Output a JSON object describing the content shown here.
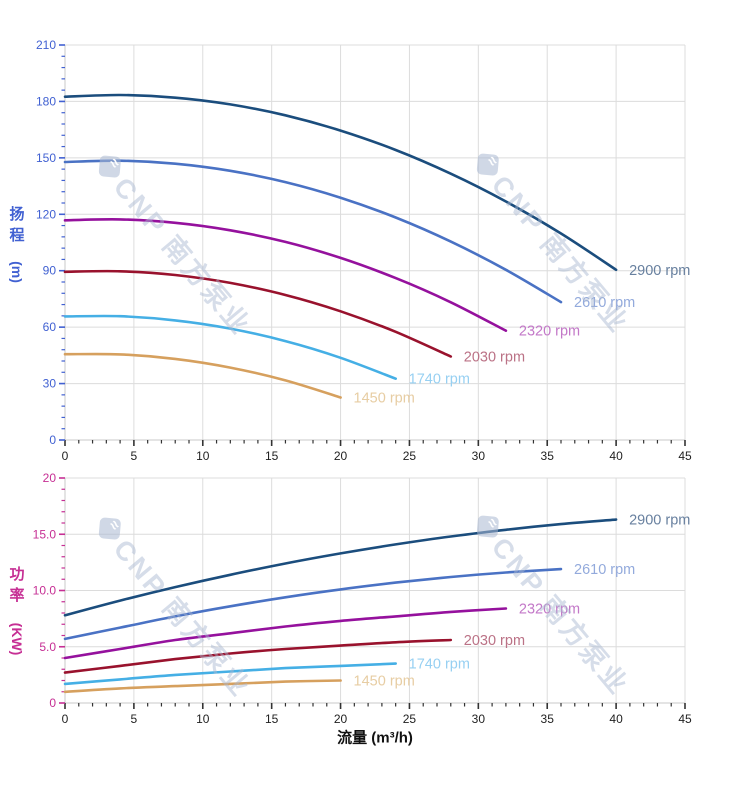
{
  "watermark": {
    "text": "CNP 南方泵业"
  },
  "chart_data": [
    {
      "type": "line",
      "title": "pump head vs flow",
      "ylabel_main": "扬程",
      "ylabel_unit": "(m)",
      "xlabel": "流量 (m³/h)",
      "xlim": [
        0,
        45
      ],
      "ylim": [
        0,
        210
      ],
      "x_major": 5,
      "x_minor": 1,
      "y_major": 30,
      "y_minor": 6,
      "x_tick_labels": [
        "0",
        "5",
        "10",
        "15",
        "20",
        "25",
        "30",
        "35",
        "40",
        "45"
      ],
      "y_tick_labels": [
        "0",
        "30",
        "60",
        "90",
        "120",
        "150",
        "180",
        "210"
      ],
      "axis_color": "#4161d2",
      "x_tick_color": "#333333",
      "x_label_color": "#1f1f1f",
      "grid": true,
      "legend_position": "end-of-curve",
      "series": [
        {
          "name": "2900 rpm",
          "color": "#1b4d7d",
          "label_color": "#68809f",
          "points": [
            [
              0,
              182.5
            ],
            [
              4,
              183.4
            ],
            [
              8,
              182.0
            ],
            [
              12,
              178.4
            ],
            [
              16,
              172.6
            ],
            [
              20,
              164.5
            ],
            [
              24,
              154.2
            ],
            [
              28,
              141.6
            ],
            [
              32,
              126.8
            ],
            [
              36,
              109.8
            ],
            [
              40,
              90.5
            ]
          ]
        },
        {
          "name": "2610 rpm",
          "color": "#4a72c4",
          "label_color": "#93aadc",
          "points": [
            [
              0,
              147.8
            ],
            [
              4,
              148.5
            ],
            [
              8,
              146.9
            ],
            [
              12,
              143.1
            ],
            [
              16,
              137.1
            ],
            [
              20,
              128.8
            ],
            [
              24,
              118.3
            ],
            [
              28,
              105.5
            ],
            [
              32,
              90.5
            ],
            [
              36,
              73.3
            ]
          ]
        },
        {
          "name": "2320 rpm",
          "color": "#95119d",
          "label_color": "#c378c8",
          "points": [
            [
              0,
              116.8
            ],
            [
              4,
              117.3
            ],
            [
              8,
              115.5
            ],
            [
              12,
              111.5
            ],
            [
              16,
              105.3
            ],
            [
              20,
              96.8
            ],
            [
              24,
              86.1
            ],
            [
              28,
              73.2
            ],
            [
              32,
              58.1
            ]
          ]
        },
        {
          "name": "2030 rpm",
          "color": "#99122d",
          "label_color": "#bb7286",
          "points": [
            [
              0,
              89.4
            ],
            [
              4,
              89.7
            ],
            [
              8,
              87.7
            ],
            [
              12,
              83.5
            ],
            [
              16,
              77.1
            ],
            [
              20,
              68.4
            ],
            [
              24,
              57.5
            ],
            [
              28,
              44.4
            ]
          ]
        },
        {
          "name": "1740 rpm",
          "color": "#45afe5",
          "label_color": "#97d0f2",
          "points": [
            [
              0,
              65.7
            ],
            [
              4,
              65.8
            ],
            [
              8,
              63.6
            ],
            [
              12,
              59.2
            ],
            [
              16,
              52.6
            ],
            [
              20,
              43.7
            ],
            [
              24,
              32.6
            ]
          ]
        },
        {
          "name": "1450 rpm",
          "color": "#d6a05e",
          "label_color": "#e7cda3",
          "points": [
            [
              0,
              45.6
            ],
            [
              4,
              45.5
            ],
            [
              8,
              43.1
            ],
            [
              12,
              38.5
            ],
            [
              16,
              31.7
            ],
            [
              20,
              22.6
            ]
          ]
        }
      ]
    },
    {
      "type": "line",
      "title": "pump power vs flow",
      "ylabel_main": "功率",
      "ylabel_unit": "(KW)",
      "xlabel": "流量 (m³/h)",
      "xlim": [
        0,
        45
      ],
      "ylim": [
        0,
        20
      ],
      "x_major": 5,
      "x_minor": 1,
      "y_major": 5,
      "y_minor": 1,
      "x_tick_labels": [
        "0",
        "5",
        "10",
        "15",
        "20",
        "25",
        "30",
        "35",
        "40",
        "45"
      ],
      "y_tick_labels": [
        "0",
        "5.0",
        "10.0",
        "15.0",
        "20"
      ],
      "axis_color": "#c62f94",
      "x_tick_color": "#333333",
      "x_label_color": "#1f1f1f",
      "grid": true,
      "legend_position": "end-of-curve",
      "series": [
        {
          "name": "2900 rpm",
          "color": "#1b4d7d",
          "label_color": "#68809f",
          "points": [
            [
              0,
              7.8
            ],
            [
              4,
              9.1
            ],
            [
              8,
              10.3
            ],
            [
              12,
              11.4
            ],
            [
              16,
              12.4
            ],
            [
              20,
              13.3
            ],
            [
              24,
              14.1
            ],
            [
              28,
              14.8
            ],
            [
              32,
              15.4
            ],
            [
              36,
              15.9
            ],
            [
              40,
              16.3
            ]
          ]
        },
        {
          "name": "2610 rpm",
          "color": "#4a72c4",
          "label_color": "#93aadc",
          "points": [
            [
              0,
              5.7
            ],
            [
              4,
              6.7
            ],
            [
              8,
              7.7
            ],
            [
              12,
              8.6
            ],
            [
              16,
              9.4
            ],
            [
              20,
              10.1
            ],
            [
              24,
              10.7
            ],
            [
              28,
              11.2
            ],
            [
              32,
              11.6
            ],
            [
              36,
              11.9
            ]
          ]
        },
        {
          "name": "2320 rpm",
          "color": "#95119d",
          "label_color": "#c378c8",
          "points": [
            [
              0,
              4.0
            ],
            [
              4,
              4.8
            ],
            [
              8,
              5.6
            ],
            [
              12,
              6.2
            ],
            [
              16,
              6.8
            ],
            [
              20,
              7.3
            ],
            [
              24,
              7.7
            ],
            [
              28,
              8.1
            ],
            [
              32,
              8.4
            ]
          ]
        },
        {
          "name": "2030 rpm",
          "color": "#99122d",
          "label_color": "#bb7286",
          "points": [
            [
              0,
              2.7
            ],
            [
              4,
              3.3
            ],
            [
              8,
              3.9
            ],
            [
              12,
              4.4
            ],
            [
              16,
              4.8
            ],
            [
              20,
              5.1
            ],
            [
              24,
              5.4
            ],
            [
              28,
              5.6
            ]
          ]
        },
        {
          "name": "1740 rpm",
          "color": "#45afe5",
          "label_color": "#97d0f2",
          "points": [
            [
              0,
              1.7
            ],
            [
              4,
              2.1
            ],
            [
              8,
              2.5
            ],
            [
              12,
              2.8
            ],
            [
              16,
              3.1
            ],
            [
              20,
              3.3
            ],
            [
              24,
              3.5
            ]
          ]
        },
        {
          "name": "1450 rpm",
          "color": "#d6a05e",
          "label_color": "#e7cda3",
          "points": [
            [
              0,
              1.0
            ],
            [
              4,
              1.3
            ],
            [
              8,
              1.5
            ],
            [
              12,
              1.7
            ],
            [
              16,
              1.9
            ],
            [
              20,
              2.0
            ]
          ]
        }
      ]
    }
  ]
}
